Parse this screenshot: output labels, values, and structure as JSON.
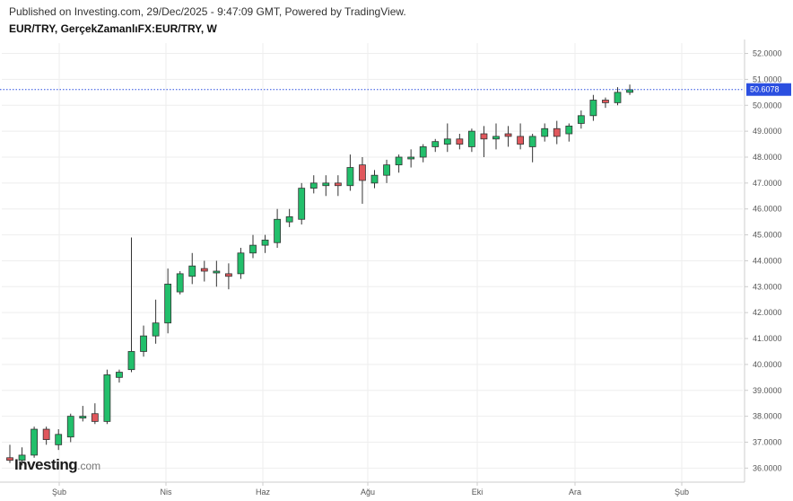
{
  "header": {
    "published": "Published on Investing.com, 29/Dec/2025 - 9:47:09 GMT, Powered by TradingView.",
    "symbol": "EUR/TRY, GerçekZamanlıFX:EUR/TRY, W"
  },
  "logo": {
    "brand": "Investing",
    "suffix": ".com"
  },
  "colors": {
    "up": "#22bf6b",
    "down": "#e0575c",
    "last_line": "#2b4fe0",
    "tag_bg": "#2b4fe0",
    "grid": "#eeeeee",
    "axis": "#cccccc"
  },
  "chart_data": {
    "type": "candlestick",
    "title": "EUR/TRY, GerçekZamanlıFX:EUR/TRY, W",
    "ylim": [
      35.7,
      52.4
    ],
    "y_ticks": [
      "36.0000",
      "37.0000",
      "38.0000",
      "39.0000",
      "40.0000",
      "41.0000",
      "42.0000",
      "43.0000",
      "44.0000",
      "45.0000",
      "46.0000",
      "47.0000",
      "48.0000",
      "49.0000",
      "50.0000",
      "51.0000",
      "52.0000"
    ],
    "x_ticks": [
      "Şub",
      "Nis",
      "Haz",
      "Ağu",
      "Eki",
      "Ara",
      "Şub"
    ],
    "last_value": "50.6078",
    "candles": [
      {
        "o": 36.4,
        "h": 36.9,
        "l": 36.2,
        "c": 36.3
      },
      {
        "o": 36.3,
        "h": 36.8,
        "l": 36.1,
        "c": 36.5
      },
      {
        "o": 36.5,
        "h": 37.6,
        "l": 36.4,
        "c": 37.5
      },
      {
        "o": 37.5,
        "h": 37.6,
        "l": 36.9,
        "c": 37.1
      },
      {
        "o": 36.9,
        "h": 37.5,
        "l": 36.7,
        "c": 37.3
      },
      {
        "o": 37.2,
        "h": 38.1,
        "l": 37.0,
        "c": 38.0
      },
      {
        "o": 38.0,
        "h": 38.4,
        "l": 37.8,
        "c": 38.0
      },
      {
        "o": 38.1,
        "h": 38.5,
        "l": 37.7,
        "c": 37.8
      },
      {
        "o": 37.8,
        "h": 39.8,
        "l": 37.7,
        "c": 39.6
      },
      {
        "o": 39.5,
        "h": 39.8,
        "l": 39.3,
        "c": 39.7
      },
      {
        "o": 39.8,
        "h": 44.9,
        "l": 39.7,
        "c": 40.5
      },
      {
        "o": 40.5,
        "h": 41.5,
        "l": 40.3,
        "c": 41.1
      },
      {
        "o": 41.1,
        "h": 42.5,
        "l": 40.8,
        "c": 41.6
      },
      {
        "o": 41.6,
        "h": 43.7,
        "l": 41.2,
        "c": 43.1
      },
      {
        "o": 42.8,
        "h": 43.6,
        "l": 42.7,
        "c": 43.5
      },
      {
        "o": 43.4,
        "h": 44.3,
        "l": 43.1,
        "c": 43.8
      },
      {
        "o": 43.7,
        "h": 44.0,
        "l": 43.2,
        "c": 43.6
      },
      {
        "o": 43.6,
        "h": 44.0,
        "l": 43.0,
        "c": 43.6
      },
      {
        "o": 43.5,
        "h": 43.9,
        "l": 42.9,
        "c": 43.4
      },
      {
        "o": 43.5,
        "h": 44.5,
        "l": 43.3,
        "c": 44.3
      },
      {
        "o": 44.3,
        "h": 45.0,
        "l": 44.1,
        "c": 44.6
      },
      {
        "o": 44.6,
        "h": 45.0,
        "l": 44.3,
        "c": 44.8
      },
      {
        "o": 44.7,
        "h": 46.0,
        "l": 44.5,
        "c": 45.6
      },
      {
        "o": 45.5,
        "h": 46.0,
        "l": 45.3,
        "c": 45.7
      },
      {
        "o": 45.6,
        "h": 47.0,
        "l": 45.4,
        "c": 46.8
      },
      {
        "o": 46.8,
        "h": 47.3,
        "l": 46.6,
        "c": 47.0
      },
      {
        "o": 46.9,
        "h": 47.3,
        "l": 46.5,
        "c": 47.0
      },
      {
        "o": 47.0,
        "h": 47.3,
        "l": 46.5,
        "c": 46.9
      },
      {
        "o": 46.9,
        "h": 48.1,
        "l": 46.7,
        "c": 47.6
      },
      {
        "o": 47.7,
        "h": 48.0,
        "l": 46.2,
        "c": 47.1
      },
      {
        "o": 47.0,
        "h": 47.5,
        "l": 46.8,
        "c": 47.3
      },
      {
        "o": 47.3,
        "h": 47.9,
        "l": 47.0,
        "c": 47.7
      },
      {
        "o": 47.7,
        "h": 48.1,
        "l": 47.4,
        "c": 48.0
      },
      {
        "o": 48.0,
        "h": 48.3,
        "l": 47.6,
        "c": 48.0
      },
      {
        "o": 48.0,
        "h": 48.5,
        "l": 47.8,
        "c": 48.4
      },
      {
        "o": 48.4,
        "h": 48.7,
        "l": 48.2,
        "c": 48.6
      },
      {
        "o": 48.5,
        "h": 49.3,
        "l": 48.2,
        "c": 48.7
      },
      {
        "o": 48.7,
        "h": 48.9,
        "l": 48.3,
        "c": 48.5
      },
      {
        "o": 48.4,
        "h": 49.1,
        "l": 48.2,
        "c": 49.0
      },
      {
        "o": 48.9,
        "h": 49.2,
        "l": 48.0,
        "c": 48.7
      },
      {
        "o": 48.7,
        "h": 49.3,
        "l": 48.3,
        "c": 48.8
      },
      {
        "o": 48.9,
        "h": 49.2,
        "l": 48.4,
        "c": 48.8
      },
      {
        "o": 48.8,
        "h": 49.3,
        "l": 48.3,
        "c": 48.5
      },
      {
        "o": 48.4,
        "h": 48.9,
        "l": 47.8,
        "c": 48.8
      },
      {
        "o": 48.8,
        "h": 49.3,
        "l": 48.6,
        "c": 49.1
      },
      {
        "o": 49.1,
        "h": 49.4,
        "l": 48.5,
        "c": 48.8
      },
      {
        "o": 48.9,
        "h": 49.3,
        "l": 48.6,
        "c": 49.2
      },
      {
        "o": 49.3,
        "h": 49.8,
        "l": 49.1,
        "c": 49.6
      },
      {
        "o": 49.6,
        "h": 50.4,
        "l": 49.4,
        "c": 50.2
      },
      {
        "o": 50.2,
        "h": 50.3,
        "l": 49.9,
        "c": 50.1
      },
      {
        "o": 50.1,
        "h": 50.7,
        "l": 50.0,
        "c": 50.5
      },
      {
        "o": 50.5,
        "h": 50.8,
        "l": 50.4,
        "c": 50.6
      }
    ]
  }
}
